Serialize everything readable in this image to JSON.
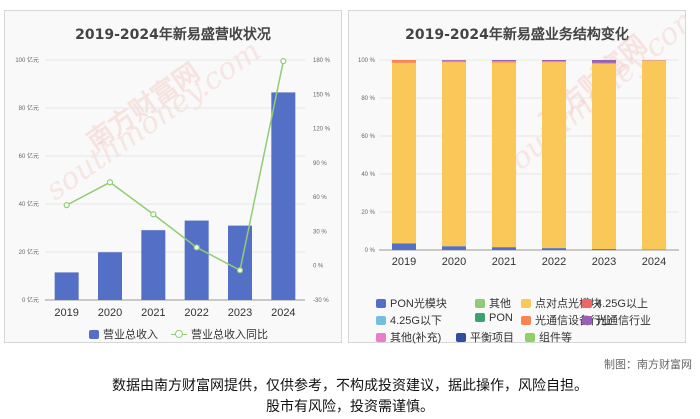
{
  "chart_data": [
    {
      "type": "bar+line",
      "title": "2019-2024年新易盛营收状况",
      "categories": [
        "2019",
        "2020",
        "2021",
        "2022",
        "2023",
        "2024"
      ],
      "series": [
        {
          "name": "营业总收入",
          "type": "bar",
          "axis": "left",
          "color": "#5470c6",
          "values": [
            11.5,
            19.9,
            29.1,
            33.1,
            31.0,
            86.5
          ]
        },
        {
          "name": "营业总收入同比",
          "type": "line",
          "axis": "right",
          "color": "#91cc75",
          "values": [
            53,
            73,
            45,
            16,
            -4,
            179
          ]
        }
      ],
      "ylim": [
        0,
        100
      ],
      "y_ticks": [
        "0 亿元",
        "20 亿元",
        "40 亿元",
        "60 亿元",
        "80 亿元",
        "100 亿元"
      ],
      "y2lim": [
        -30,
        180
      ],
      "y2_ticks": [
        "-30 %",
        "0 %",
        "30 %",
        "60 %",
        "90 %",
        "120 %",
        "150 %",
        "180 %"
      ],
      "grid": true,
      "legend": "bottom"
    },
    {
      "type": "stacked-bar-100",
      "title": "2019-2024年新易盛业务结构变化",
      "categories": [
        "2019",
        "2020",
        "2021",
        "2022",
        "2023",
        "2024"
      ],
      "series": [
        {
          "name": "PON光模块",
          "color": "#5470c6",
          "values": [
            3.5,
            2.0,
            1.5,
            1.0,
            0.5,
            0.2
          ]
        },
        {
          "name": "其他",
          "color": "#91cc75",
          "values": [
            0,
            0,
            0,
            0,
            0,
            0
          ]
        },
        {
          "name": "点对点光模块",
          "color": "#fac858",
          "values": [
            95.0,
            96.8,
            97.2,
            97.8,
            97.5,
            99.5
          ]
        },
        {
          "name": "4.25G以上",
          "color": "#ee6666",
          "values": [
            0,
            0,
            0,
            0,
            0,
            0
          ]
        },
        {
          "name": "4.25G以下",
          "color": "#73c0de",
          "values": [
            0,
            0,
            0,
            0,
            0,
            0
          ]
        },
        {
          "name": "PON",
          "color": "#3ba272",
          "values": [
            0,
            0,
            0,
            0,
            0,
            0
          ]
        },
        {
          "name": "光通信设备行业",
          "color": "#fc8452",
          "values": [
            1.5,
            0.8,
            0.7,
            0.6,
            0.5,
            0.2
          ]
        },
        {
          "name": "光通信行业",
          "color": "#9a60b4",
          "values": [
            0,
            0.4,
            0.6,
            0.6,
            1.5,
            0.1
          ]
        },
        {
          "name": "其他(补充)",
          "color": "#ea7ccc",
          "values": [
            0,
            0,
            0,
            0,
            0,
            0
          ]
        },
        {
          "name": "平衡项目",
          "color": "#2f4ea0",
          "values": [
            0,
            0,
            0,
            0,
            0,
            0
          ]
        },
        {
          "name": "组件等",
          "color": "#8fd068",
          "values": [
            0,
            0,
            0,
            0,
            0,
            0
          ]
        }
      ],
      "ylim": [
        0,
        100
      ],
      "y_ticks": [
        "0 %",
        "20 %",
        "40 %",
        "60 %",
        "80 %",
        "100 %"
      ],
      "grid": true,
      "legend": "bottom"
    }
  ],
  "watermark": [
    "南方财富网",
    "southmoney.com"
  ],
  "credit": "制图：南方财富网",
  "disclaimer": {
    "line1": "数据由南方财富网提供，仅供参考，不构成投资建议，据此操作，风险自担。",
    "line2": "股市有风险，投资需谨慎。"
  }
}
